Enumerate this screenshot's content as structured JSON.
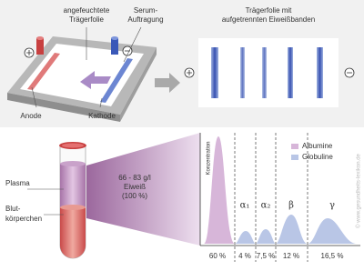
{
  "apparatus": {
    "foil_label": [
      "angefeuchtete",
      "Trägerfolie"
    ],
    "serum_label": [
      "Serum-",
      "Auftragung"
    ],
    "anode": "Anode",
    "cathode": "Kathode"
  },
  "result": {
    "title": [
      "Trägerfolie mit",
      "aufgetrennten Eiweißbanden"
    ]
  },
  "tube": {
    "plasma": "Plasma",
    "cells": [
      "Blut-",
      "körperchen"
    ]
  },
  "protein": [
    "66 - 83 g/l",
    "Eiweiß",
    "(100 %)"
  ],
  "chart": {
    "y_label": "Konzentration",
    "legend": [
      "Albumine",
      "Globuline"
    ],
    "fractions": [
      {
        "percent": "60 %"
      },
      {
        "symbol": "α₁",
        "percent": "4 %"
      },
      {
        "symbol": "α₂",
        "percent": "7,5 %"
      },
      {
        "symbol": "β",
        "percent": "12 %"
      },
      {
        "symbol": "γ",
        "percent": "16,5 %"
      }
    ]
  },
  "copyright": "© www.gesundheits-lexikon.de"
}
